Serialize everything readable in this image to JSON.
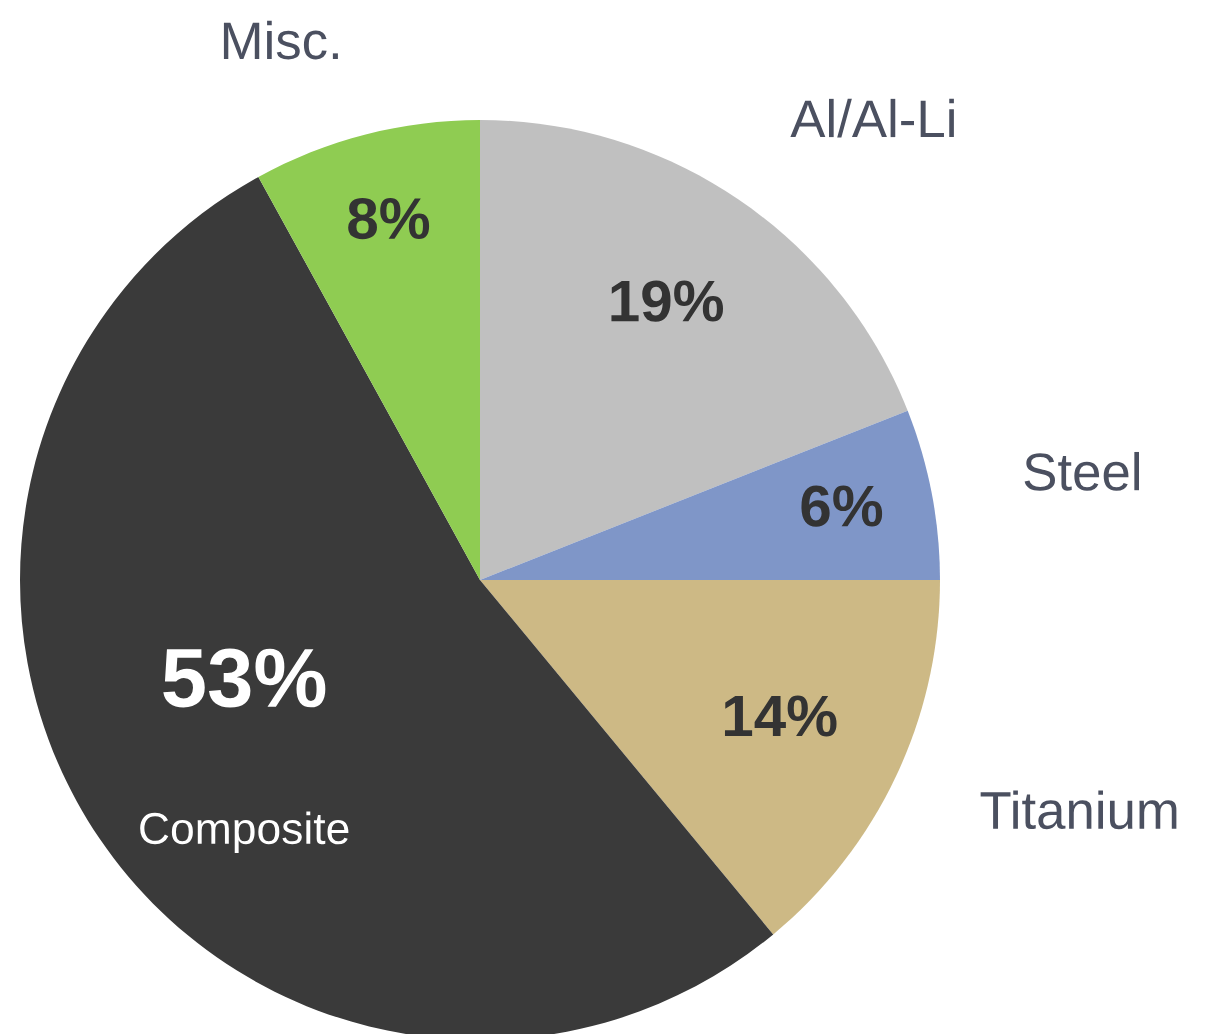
{
  "chart_data": {
    "type": "pie",
    "categories": [
      "Al/Al-Li",
      "Steel",
      "Titanium",
      "Composite",
      "Misc."
    ],
    "values": [
      19,
      6,
      14,
      53,
      8
    ],
    "colors": [
      "#c0c0c0",
      "#7f96c8",
      "#cdb985",
      "#3a3a3a",
      "#8fcc52"
    ],
    "value_labels": [
      "19%",
      "6%",
      "14%",
      "53%",
      "8%"
    ]
  }
}
